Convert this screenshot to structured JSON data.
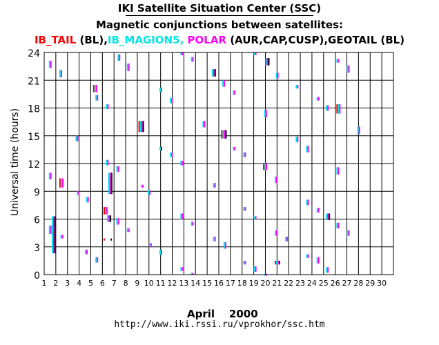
{
  "header": {
    "title": "IKI Satellite Situation Center (SSC)",
    "subtitle": "Magnetic conjunctions between satellites:",
    "legend": [
      {
        "text": "IB_TAIL",
        "color": "#ff0000"
      },
      {
        "text": " (BL),",
        "color": "#000000"
      },
      {
        "text": "IB_MAGION5, ",
        "color": "#00e5e5"
      },
      {
        "text": "POLAR",
        "color": "#ff00ff"
      },
      {
        "text": " (AUR,CAP,CUSP),GEOTAIL (BL)",
        "color": "#000000"
      }
    ]
  },
  "footer": {
    "xlabel": "April    2000",
    "url": "http://www.iki.rssi.ru/vprokhor/ssc.htm"
  },
  "chart_data": {
    "type": "scatter",
    "ylabel": "Universal time (hours)",
    "xlim": [
      1,
      31
    ],
    "ylim": [
      0,
      24
    ],
    "x_ticks": [
      "1",
      "2",
      "3",
      "4",
      "5",
      "6",
      "7",
      "8",
      "9",
      "10",
      "11",
      "12",
      "13",
      "14",
      "15",
      "16",
      "17",
      "18",
      "19",
      "20",
      "21",
      "22",
      "23",
      "24",
      "25",
      "26",
      "27",
      "28",
      "29",
      "30"
    ],
    "y_ticks": [
      "0",
      "3",
      "6",
      "9",
      "12",
      "15",
      "18",
      "21",
      "24"
    ],
    "y_gridlines": [
      0,
      3,
      6,
      9,
      12,
      15,
      18,
      21,
      24
    ],
    "colors": {
      "IB_TAIL": "#ff0000",
      "IB_MAGION5": "#00e5e5",
      "POLAR": "#ff00ff",
      "GEOTAIL": "#000000"
    },
    "marks": [
      {
        "day": 1.4,
        "start": 22.3,
        "end": 23.1,
        "sats": [
          "IB_MAGION5",
          "POLAR"
        ]
      },
      {
        "day": 1.4,
        "start": 10.3,
        "end": 11.0,
        "sats": [
          "IB_MAGION5",
          "POLAR"
        ]
      },
      {
        "day": 1.4,
        "start": 4.4,
        "end": 5.3,
        "sats": [
          "IB_MAGION5",
          "POLAR"
        ]
      },
      {
        "day": 1.65,
        "start": 2.3,
        "end": 6.3,
        "sats": [
          "IB_MAGION5",
          "POLAR",
          "GEOTAIL"
        ]
      },
      {
        "day": 2.3,
        "start": 21.3,
        "end": 22.1,
        "sats": [
          "IB_MAGION5",
          "POLAR"
        ]
      },
      {
        "day": 2.3,
        "start": 9.4,
        "end": 10.4,
        "sats": [
          "IB_TAIL",
          "IB_MAGION5",
          "POLAR"
        ]
      },
      {
        "day": 2.4,
        "start": 3.9,
        "end": 4.3,
        "sats": [
          "IB_MAGION5",
          "POLAR"
        ]
      },
      {
        "day": 3.7,
        "start": 14.4,
        "end": 15.0,
        "sats": [
          "IB_MAGION5",
          "POLAR"
        ]
      },
      {
        "day": 3.8,
        "start": 8.6,
        "end": 9.0,
        "sats": [
          "IB_MAGION5",
          "POLAR"
        ]
      },
      {
        "day": 4.6,
        "start": 7.8,
        "end": 8.4,
        "sats": [
          "IB_MAGION5",
          "POLAR"
        ]
      },
      {
        "day": 4.5,
        "start": 2.2,
        "end": 2.7,
        "sats": [
          "IB_MAGION5",
          "POLAR"
        ]
      },
      {
        "day": 5.2,
        "start": 19.7,
        "end": 20.5,
        "sats": [
          "IB_TAIL",
          "IB_MAGION5",
          "POLAR"
        ]
      },
      {
        "day": 5.4,
        "start": 18.8,
        "end": 19.4,
        "sats": [
          "IB_MAGION5",
          "POLAR"
        ]
      },
      {
        "day": 5.4,
        "start": 1.3,
        "end": 1.9,
        "sats": [
          "IB_MAGION5",
          "POLAR"
        ]
      },
      {
        "day": 6.1,
        "start": 6.5,
        "end": 7.3,
        "sats": [
          "IB_TAIL",
          "IB_MAGION5",
          "POLAR"
        ]
      },
      {
        "day": 6.1,
        "start": 3.7,
        "end": 3.9,
        "sats": [
          "IB_TAIL"
        ]
      },
      {
        "day": 6.3,
        "start": 17.9,
        "end": 18.4,
        "sats": [
          "IB_MAGION5",
          "POLAR"
        ]
      },
      {
        "day": 6.3,
        "start": 11.8,
        "end": 12.4,
        "sats": [
          "IB_MAGION5",
          "POLAR"
        ]
      },
      {
        "day": 6.5,
        "start": 8.7,
        "end": 11.0,
        "sats": [
          "IB_MAGION5",
          "POLAR",
          "GEOTAIL"
        ]
      },
      {
        "day": 6.4,
        "start": 5.7,
        "end": 6.4,
        "sats": [
          "IB_MAGION5",
          "POLAR",
          "GEOTAIL"
        ]
      },
      {
        "day": 6.7,
        "start": 3.7,
        "end": 3.9,
        "sats": [
          "GEOTAIL"
        ]
      },
      {
        "day": 7.3,
        "start": 23.1,
        "end": 23.8,
        "sats": [
          "IB_MAGION5",
          "POLAR"
        ]
      },
      {
        "day": 7.2,
        "start": 11.1,
        "end": 11.7,
        "sats": [
          "IB_MAGION5",
          "POLAR"
        ]
      },
      {
        "day": 7.2,
        "start": 5.4,
        "end": 6.1,
        "sats": [
          "IB_MAGION5",
          "POLAR"
        ]
      },
      {
        "day": 8.1,
        "start": 22.0,
        "end": 22.8,
        "sats": [
          "IB_MAGION5",
          "POLAR"
        ]
      },
      {
        "day": 8.1,
        "start": 4.6,
        "end": 5.0,
        "sats": [
          "IB_MAGION5",
          "POLAR"
        ]
      },
      {
        "day": 9.1,
        "start": 15.4,
        "end": 16.6,
        "sats": [
          "IB_TAIL",
          "IB_MAGION5",
          "POLAR",
          "GEOTAIL"
        ]
      },
      {
        "day": 9.3,
        "start": 9.4,
        "end": 9.7,
        "sats": [
          "IB_MAGION5",
          "POLAR"
        ]
      },
      {
        "day": 9.9,
        "start": 8.6,
        "end": 9.1,
        "sats": [
          "IB_MAGION5",
          "POLAR"
        ]
      },
      {
        "day": 10.0,
        "start": 3.0,
        "end": 3.4,
        "sats": [
          "IB_MAGION5",
          "POLAR"
        ]
      },
      {
        "day": 10.9,
        "start": 19.7,
        "end": 20.2,
        "sats": [
          "IB_MAGION5",
          "POLAR"
        ]
      },
      {
        "day": 10.9,
        "start": 13.4,
        "end": 13.8,
        "sats": [
          "IB_MAGION5",
          "GEOTAIL"
        ]
      },
      {
        "day": 10.9,
        "start": 2.1,
        "end": 2.7,
        "sats": [
          "IB_MAGION5",
          "POLAR"
        ]
      },
      {
        "day": 11.8,
        "start": 18.5,
        "end": 19.1,
        "sats": [
          "IB_MAGION5",
          "POLAR"
        ]
      },
      {
        "day": 11.8,
        "start": 12.7,
        "end": 13.2,
        "sats": [
          "IB_MAGION5",
          "POLAR"
        ]
      },
      {
        "day": 12.7,
        "start": 23.7,
        "end": 24.0,
        "sats": [
          "IB_MAGION5",
          "POLAR"
        ]
      },
      {
        "day": 12.7,
        "start": 11.8,
        "end": 12.3,
        "sats": [
          "IB_MAGION5",
          "POLAR"
        ]
      },
      {
        "day": 12.7,
        "start": 6.0,
        "end": 6.6,
        "sats": [
          "IB_MAGION5",
          "POLAR"
        ]
      },
      {
        "day": 12.7,
        "start": 0.4,
        "end": 0.8,
        "sats": [
          "IB_MAGION5",
          "POLAR"
        ]
      },
      {
        "day": 13.6,
        "start": 23.0,
        "end": 23.5,
        "sats": [
          "IB_MAGION5",
          "POLAR"
        ]
      },
      {
        "day": 13.6,
        "start": 5.3,
        "end": 5.7,
        "sats": [
          "IB_MAGION5",
          "POLAR"
        ]
      },
      {
        "day": 13.6,
        "start": 0.0,
        "end": 0.2,
        "sats": [
          "IB_MAGION5",
          "POLAR"
        ]
      },
      {
        "day": 14.6,
        "start": 15.9,
        "end": 16.6,
        "sats": [
          "IB_MAGION5",
          "POLAR"
        ]
      },
      {
        "day": 15.4,
        "start": 21.4,
        "end": 22.2,
        "sats": [
          "IB_MAGION5",
          "POLAR",
          "GEOTAIL"
        ]
      },
      {
        "day": 15.5,
        "start": 9.4,
        "end": 9.9,
        "sats": [
          "IB_MAGION5",
          "POLAR"
        ]
      },
      {
        "day": 15.5,
        "start": 3.6,
        "end": 4.1,
        "sats": [
          "IB_MAGION5",
          "POLAR"
        ]
      },
      {
        "day": 16.2,
        "start": 14.7,
        "end": 15.6,
        "sats": [
          "IB_TAIL",
          "IB_MAGION5",
          "POLAR",
          "GEOTAIL"
        ]
      },
      {
        "day": 16.3,
        "start": 20.3,
        "end": 21.0,
        "sats": [
          "IB_MAGION5",
          "POLAR"
        ]
      },
      {
        "day": 16.4,
        "start": 2.8,
        "end": 3.5,
        "sats": [
          "IB_MAGION5",
          "POLAR"
        ]
      },
      {
        "day": 17.2,
        "start": 19.4,
        "end": 19.9,
        "sats": [
          "IB_MAGION5",
          "POLAR"
        ]
      },
      {
        "day": 17.2,
        "start": 13.4,
        "end": 13.8,
        "sats": [
          "IB_MAGION5",
          "POLAR"
        ]
      },
      {
        "day": 18.1,
        "start": 12.7,
        "end": 13.2,
        "sats": [
          "IB_MAGION5",
          "POLAR"
        ]
      },
      {
        "day": 18.1,
        "start": 6.9,
        "end": 7.3,
        "sats": [
          "IB_MAGION5",
          "POLAR"
        ]
      },
      {
        "day": 18.1,
        "start": 1.1,
        "end": 1.5,
        "sats": [
          "IB_MAGION5",
          "POLAR"
        ]
      },
      {
        "day": 19.0,
        "start": 23.7,
        "end": 24.0,
        "sats": [
          "IB_MAGION5",
          "POLAR"
        ]
      },
      {
        "day": 19.0,
        "start": 6.0,
        "end": 6.3,
        "sats": [
          "IB_MAGION5",
          "POLAR"
        ]
      },
      {
        "day": 19.0,
        "start": 0.3,
        "end": 0.9,
        "sats": [
          "IB_MAGION5",
          "POLAR"
        ]
      },
      {
        "day": 19.8,
        "start": 11.3,
        "end": 12.0,
        "sats": [
          "IB_TAIL",
          "IB_MAGION5",
          "POLAR"
        ]
      },
      {
        "day": 20.0,
        "start": 22.6,
        "end": 23.4,
        "sats": [
          "IB_MAGION5",
          "POLAR",
          "GEOTAIL"
        ]
      },
      {
        "day": 19.9,
        "start": 17.0,
        "end": 17.8,
        "sats": [
          "IB_MAGION5",
          "POLAR"
        ]
      },
      {
        "day": 19.9,
        "start": 0.0,
        "end": 0.1,
        "sats": [
          "IB_MAGION5",
          "POLAR"
        ]
      },
      {
        "day": 20.9,
        "start": 21.2,
        "end": 21.8,
        "sats": [
          "IB_MAGION5",
          "POLAR"
        ]
      },
      {
        "day": 20.8,
        "start": 9.9,
        "end": 10.6,
        "sats": [
          "IB_MAGION5",
          "POLAR"
        ]
      },
      {
        "day": 20.8,
        "start": 4.2,
        "end": 4.8,
        "sats": [
          "IB_MAGION5",
          "POLAR"
        ]
      },
      {
        "day": 20.8,
        "start": 1.1,
        "end": 1.5,
        "sats": [
          "IB_TAIL",
          "IB_MAGION5",
          "POLAR",
          "GEOTAIL"
        ]
      },
      {
        "day": 21.7,
        "start": 3.6,
        "end": 4.1,
        "sats": [
          "IB_MAGION5",
          "POLAR"
        ]
      },
      {
        "day": 22.6,
        "start": 20.1,
        "end": 20.5,
        "sats": [
          "IB_MAGION5",
          "POLAR"
        ]
      },
      {
        "day": 22.6,
        "start": 14.3,
        "end": 14.9,
        "sats": [
          "IB_MAGION5",
          "POLAR"
        ]
      },
      {
        "day": 23.5,
        "start": 13.2,
        "end": 13.9,
        "sats": [
          "IB_MAGION5",
          "POLAR"
        ]
      },
      {
        "day": 23.5,
        "start": 7.5,
        "end": 8.1,
        "sats": [
          "IB_MAGION5",
          "POLAR"
        ]
      },
      {
        "day": 23.5,
        "start": 1.8,
        "end": 2.2,
        "sats": [
          "IB_MAGION5",
          "POLAR"
        ]
      },
      {
        "day": 24.4,
        "start": 18.8,
        "end": 19.2,
        "sats": [
          "IB_MAGION5",
          "POLAR"
        ]
      },
      {
        "day": 24.4,
        "start": 6.7,
        "end": 7.2,
        "sats": [
          "IB_MAGION5",
          "POLAR"
        ]
      },
      {
        "day": 24.4,
        "start": 1.2,
        "end": 1.9,
        "sats": [
          "IB_MAGION5",
          "POLAR"
        ]
      },
      {
        "day": 25.2,
        "start": 17.7,
        "end": 18.3,
        "sats": [
          "IB_MAGION5",
          "POLAR"
        ]
      },
      {
        "day": 25.2,
        "start": 5.9,
        "end": 6.6,
        "sats": [
          "IB_MAGION5",
          "POLAR",
          "GEOTAIL"
        ]
      },
      {
        "day": 25.2,
        "start": 0.2,
        "end": 0.8,
        "sats": [
          "IB_MAGION5",
          "POLAR"
        ]
      },
      {
        "day": 26.1,
        "start": 17.4,
        "end": 18.4,
        "sats": [
          "IB_TAIL",
          "IB_MAGION5",
          "POLAR"
        ]
      },
      {
        "day": 26.1,
        "start": 22.9,
        "end": 23.3,
        "sats": [
          "IB_MAGION5",
          "POLAR"
        ]
      },
      {
        "day": 26.1,
        "start": 10.8,
        "end": 11.6,
        "sats": [
          "IB_MAGION5",
          "POLAR"
        ]
      },
      {
        "day": 26.1,
        "start": 5.0,
        "end": 5.6,
        "sats": [
          "IB_MAGION5",
          "POLAR"
        ]
      },
      {
        "day": 27.0,
        "start": 21.8,
        "end": 22.6,
        "sats": [
          "IB_MAGION5",
          "POLAR"
        ]
      },
      {
        "day": 27.0,
        "start": 4.2,
        "end": 4.8,
        "sats": [
          "IB_MAGION5",
          "POLAR"
        ]
      },
      {
        "day": 27.9,
        "start": 15.2,
        "end": 16.0,
        "sats": [
          "IB_MAGION5",
          "POLAR"
        ]
      }
    ]
  }
}
